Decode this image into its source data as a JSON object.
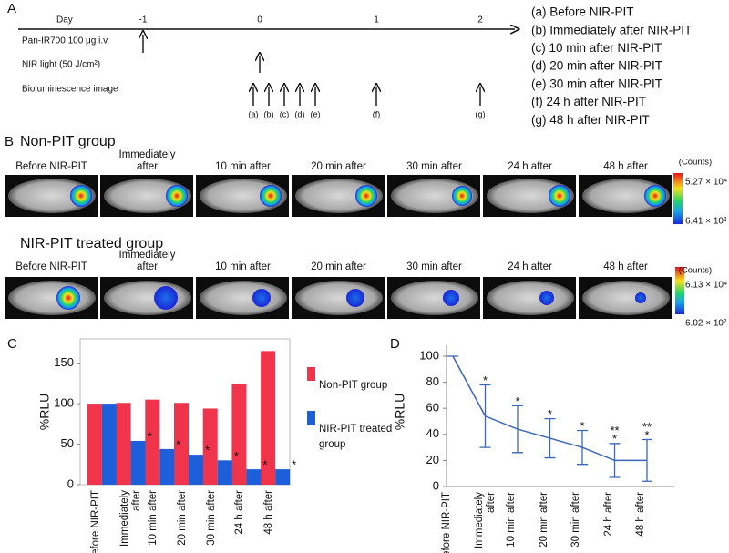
{
  "panel_a": {
    "label": "A",
    "day_label": "Day",
    "days": [
      "-1",
      "0",
      "1",
      "2"
    ],
    "rows": [
      "Pan-IR700 100 μg i.v.",
      "NIR light (50 J/cm²)",
      "Bioluminescence image"
    ],
    "markers": [
      "(a)",
      "(b)",
      "(c)",
      "(d)",
      "(e)",
      "(f)",
      "(g)"
    ],
    "legend": [
      "(a) Before NIR-PIT",
      "(b) Immediately after NIR-PIT",
      "(c) 10 min after NIR-PIT",
      "(d) 20 min after NIR-PIT",
      "(e) 30 min after NIR-PIT",
      "(f) 24 h after NIR-PIT",
      "(g) 48 h after NIR-PIT"
    ]
  },
  "panel_b": {
    "label": "B",
    "groups": [
      {
        "title": "Non-PIT group",
        "images": [
          "Before NIR-PIT",
          "Immediately after",
          "10 min after",
          "20 min after",
          "30 min after",
          "24 h after",
          "48 h after"
        ],
        "colorbar": {
          "unit": "(Counts)",
          "max": "5.27 × 10⁴",
          "min": "6.41 × 10²"
        }
      },
      {
        "title": "NIR-PIT treated group",
        "images": [
          "Before NIR-PIT",
          "Immediately after",
          "10 min after",
          "20 min after",
          "30 min after",
          "24 h after",
          "48 h after"
        ],
        "colorbar": {
          "unit": "(Counts)",
          "max": "6.13 × 10⁴",
          "min": "6.02 × 10²"
        }
      }
    ]
  },
  "chart_data": [
    {
      "type": "bar",
      "panel_label": "C",
      "y_label": "%RLU",
      "categories": [
        "Before NIR-PIT",
        "Immediately after",
        "10 min after",
        "20 min after",
        "30 min after",
        "24 h after",
        "48 h after"
      ],
      "series": [
        {
          "name": "Non-PIT group",
          "color": "#f0344c",
          "values": [
            100,
            101,
            105,
            101,
            94,
            124,
            165
          ]
        },
        {
          "name": "NIR-PIT treated group",
          "color": "#1d5fd8",
          "values": [
            100,
            54,
            44,
            37,
            30,
            19,
            19
          ]
        }
      ],
      "annotations": [
        {
          "series": 1,
          "index": 1,
          "text": "*"
        },
        {
          "series": 1,
          "index": 2,
          "text": "*"
        },
        {
          "series": 1,
          "index": 3,
          "text": "*"
        },
        {
          "series": 1,
          "index": 4,
          "text": "*"
        },
        {
          "series": 1,
          "index": 5,
          "text": "*"
        },
        {
          "series": 1,
          "index": 6,
          "text": "*"
        }
      ],
      "ylim": [
        0,
        180
      ],
      "yticks": [
        0,
        50,
        100,
        150
      ],
      "legend": "right"
    },
    {
      "type": "line",
      "panel_label": "D",
      "y_label": "%RLU",
      "categories": [
        "Before NIR-PIT",
        "Immediately after",
        "10 min after",
        "20 min after",
        "30 min after",
        "24 h after",
        "48 h after"
      ],
      "color": "#3a68b8",
      "values": [
        100,
        54,
        44,
        37,
        30,
        20,
        20
      ],
      "errors": [
        0,
        24,
        18,
        15,
        13,
        13,
        16
      ],
      "annotations": [
        {
          "index": 1,
          "lines": [
            "*"
          ]
        },
        {
          "index": 2,
          "lines": [
            "*"
          ]
        },
        {
          "index": 3,
          "lines": [
            "*"
          ]
        },
        {
          "index": 4,
          "lines": [
            "*"
          ]
        },
        {
          "index": 5,
          "lines": [
            "**",
            "*"
          ]
        },
        {
          "index": 6,
          "lines": [
            "**",
            "*"
          ]
        }
      ],
      "ylim": [
        0,
        100
      ],
      "yticks": [
        0,
        20,
        40,
        60,
        80,
        100
      ]
    }
  ]
}
